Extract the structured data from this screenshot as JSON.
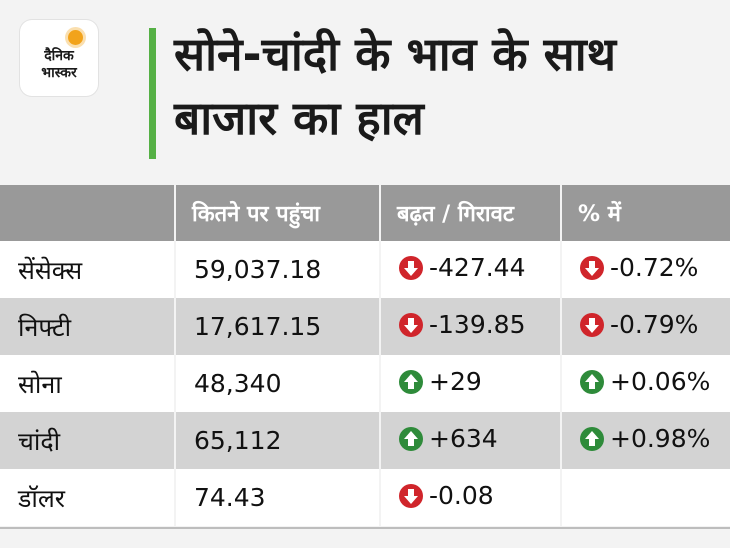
{
  "logo": {
    "line1": "दैनिक",
    "line2": "भास्कर"
  },
  "title": "सोने-चांदी के भाव के साथ बाजार का हाल",
  "colors": {
    "accent": "#55b045",
    "header_bg": "#999999",
    "down": "#d0252b",
    "up": "#2e8b3a"
  },
  "table": {
    "headers": [
      "",
      "कितने पर पहुंचा",
      "बढ़त / गिरावट",
      "% में"
    ],
    "rows": [
      {
        "name": "सेंसेक्स",
        "value": "59,037.18",
        "change": "-427.44",
        "change_dir": "down",
        "pct": "-0.72%",
        "pct_dir": "down"
      },
      {
        "name": "निफ्टी",
        "value": "17,617.15",
        "change": "-139.85",
        "change_dir": "down",
        "pct": "-0.79%",
        "pct_dir": "down"
      },
      {
        "name": "सोना",
        "value": "48,340",
        "change": "+29",
        "change_dir": "up",
        "pct": "+0.06%",
        "pct_dir": "up"
      },
      {
        "name": "चांदी",
        "value": "65,112",
        "change": "+634",
        "change_dir": "up",
        "pct": "+0.98%",
        "pct_dir": "up"
      },
      {
        "name": "डॉलर",
        "value": "74.43",
        "change": "-0.08",
        "change_dir": "down",
        "pct": "",
        "pct_dir": ""
      }
    ]
  }
}
